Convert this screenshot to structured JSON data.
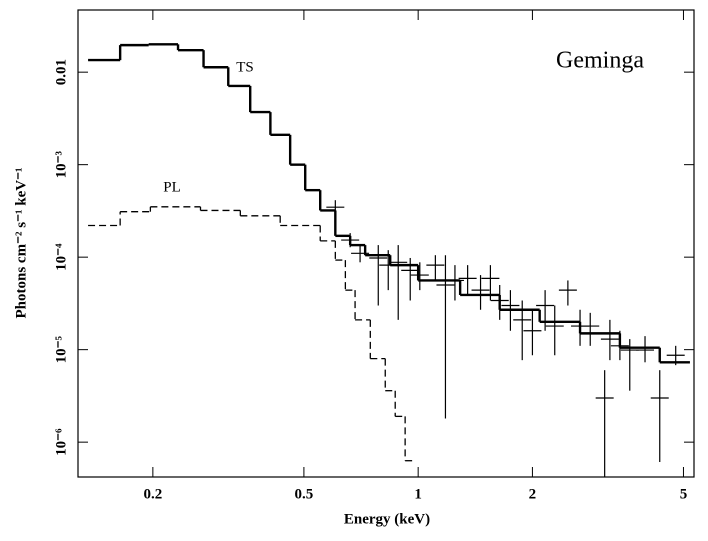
{
  "chart_data": {
    "type": "step",
    "annotation": "Geminga",
    "x_label": "Energy (keV)",
    "y_label": "Photons cm⁻² s⁻¹ keV⁻¹",
    "xscale": "log",
    "yscale": "log",
    "xlim": [
      0.127,
      5.33
    ],
    "ylim": [
      4.2e-07,
      0.047
    ],
    "xticks": [
      0.2,
      0.5,
      1,
      2,
      5
    ],
    "yticks": [
      {
        "value": 1e-06,
        "label": "10⁻⁶"
      },
      {
        "value": 1e-05,
        "label": "10⁻⁵"
      },
      {
        "value": 0.0001,
        "label": "10⁻⁴"
      },
      {
        "value": 0.001,
        "label": "10⁻³"
      },
      0.01
    ],
    "series": [
      {
        "name": "TS",
        "color": "#000000",
        "dashed": false,
        "bins": [
          0.135,
          0.164,
          0.195,
          0.233,
          0.272,
          0.316,
          0.361,
          0.408,
          0.46,
          0.504,
          0.552,
          0.605,
          0.662,
          0.725,
          0.844,
          1.0,
          1.29,
          1.64,
          2.09,
          2.67,
          3.4,
          4.33,
          5.2
        ],
        "values": [
          0.0135,
          0.0196,
          0.02,
          0.0173,
          0.0113,
          0.0071,
          0.0037,
          0.0021,
          0.001,
          0.00053,
          0.00032,
          0.00017,
          0.000135,
          0.000105,
          8.2e-05,
          5.6e-05,
          3.9e-05,
          2.7e-05,
          2e-05,
          1.5e-05,
          1.05e-05,
          7.3e-06
        ]
      },
      {
        "name": "PL",
        "color": "#000000",
        "dashed": true,
        "bins": [
          0.135,
          0.164,
          0.197,
          0.267,
          0.34,
          0.433,
          0.552,
          0.605,
          0.643,
          0.682,
          0.748,
          0.819,
          0.87,
          0.924,
          0.98
        ],
        "values": [
          0.00022,
          0.00031,
          0.00035,
          0.00032,
          0.00028,
          0.00022,
          0.00015,
          9.3e-05,
          4.4e-05,
          2.1e-05,
          8e-06,
          3.6e-06,
          1.9e-06,
          6.3e-07
        ]
      }
    ],
    "points": {
      "x": [
        0.605,
        0.662,
        0.703,
        0.785,
        0.834,
        0.886,
        0.953,
        1.01,
        1.11,
        1.18,
        1.25,
        1.35,
        1.46,
        1.55,
        1.64,
        1.75,
        1.88,
        2.0,
        2.16,
        2.29,
        2.48,
        2.67,
        2.84,
        3.1,
        3.2,
        3.4,
        3.61,
        3.96,
        4.33,
        4.77
      ],
      "y": [
        0.000347,
        0.000153,
        0.00011,
        9.8e-05,
        8.2e-05,
        8.8e-05,
        7.2e-05,
        6.4e-05,
        8.2e-05,
        5e-05,
        5.6e-05,
        5.9e-05,
        4.4e-05,
        5.9e-05,
        3.4e-05,
        3e-05,
        2.1e-05,
        1.6e-05,
        3e-05,
        1.8e-05,
        4.4e-05,
        1.8e-05,
        1.8e-05,
        3e-06,
        1.3e-05,
        1.1e-05,
        9.9e-06,
        9.9e-06,
        3e-06,
        8.7e-06
      ],
      "ylow": [
        0.000292,
        0.000128,
        8.8e-05,
        3e-05,
        4.4e-05,
        2.1e-05,
        3.4e-05,
        4.4e-05,
        5.6e-05,
        1.8e-06,
        3.4e-05,
        3.9e-05,
        2.7e-05,
        3.4e-05,
        2.1e-05,
        1.6e-05,
        7.7e-06,
        8.7e-06,
        1.6e-05,
        8.7e-06,
        3e-05,
        1.1e-05,
        1.1e-05,
        4.2e-07,
        7.7e-06,
        7.7e-06,
        3.6e-06,
        7.3e-06,
        6.1e-07,
        6.8e-06
      ],
      "yhigh": [
        0.000413,
        0.000182,
        0.000135,
        0.000135,
        0.000119,
        0.000135,
        9.8e-05,
        8.8e-05,
        0.000105,
        0.000105,
        8.2e-05,
        8.2e-05,
        6.4e-05,
        8.2e-05,
        5e-05,
        4.4e-05,
        3.4e-05,
        2.7e-05,
        4.4e-05,
        3e-05,
        5.6e-05,
        2.7e-05,
        2.5e-05,
        6e-06,
        2.1e-05,
        1.6e-05,
        1.3e-05,
        1.4e-05,
        6e-06,
        1.1e-05
      ]
    }
  }
}
